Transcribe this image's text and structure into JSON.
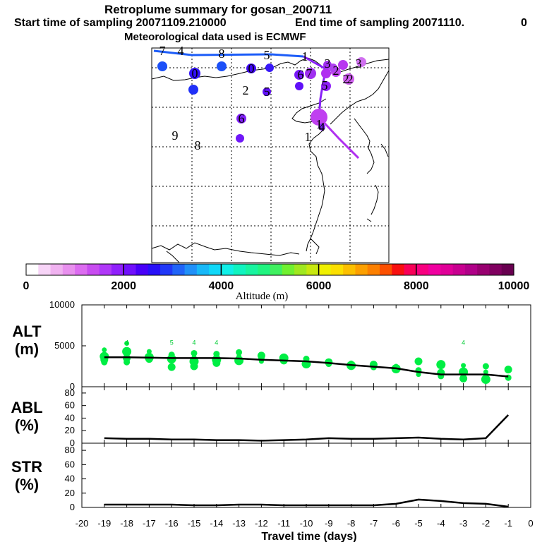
{
  "header": {
    "title": "Retroplume summary for gosan_200711",
    "start": "Start time of sampling 20071109.210000",
    "end": "End time of sampling 20071110.",
    "end_suffix": "0",
    "met": "Meteorological data used is ECMWF"
  },
  "colorbar": {
    "ticks": [
      "0",
      "2000",
      "4000",
      "6000",
      "8000",
      "10000"
    ],
    "label": "Altitude (m)",
    "colors": [
      "#ffffff",
      "#f7d4f7",
      "#f0b2f0",
      "#e890ee",
      "#dc6cf0",
      "#c84cf0",
      "#b038f8",
      "#9020fc",
      "#7010fc",
      "#4800f8",
      "#2810f8",
      "#2038f8",
      "#2064f8",
      "#2090f8",
      "#18b8f8",
      "#10d8f8",
      "#10f0e8",
      "#10f4c0",
      "#18f4a0",
      "#20f480",
      "#40f060",
      "#70f030",
      "#a0e820",
      "#c8e810",
      "#f0f000",
      "#fce000",
      "#fcc000",
      "#fca000",
      "#fc8000",
      "#fc5000",
      "#f81010",
      "#f80058",
      "#f80080",
      "#f000a0",
      "#e00098",
      "#c80090",
      "#b00088",
      "#980070",
      "#800060",
      "#680050"
    ]
  },
  "map": {
    "numbers": [
      {
        "t": "7",
        "c": "#000"
      },
      {
        "t": "4",
        "c": "#000"
      },
      {
        "t": "8",
        "c": "#000"
      },
      {
        "t": "5",
        "c": "#000"
      },
      {
        "t": "1",
        "c": "#000"
      },
      {
        "t": "3",
        "c": "#000"
      },
      {
        "t": "3",
        "c": "#000"
      },
      {
        "t": "2",
        "c": "#000"
      },
      {
        "t": "2",
        "c": "#000"
      },
      {
        "t": "9",
        "c": "#000"
      },
      {
        "t": "8",
        "c": "#000"
      },
      {
        "t": "1",
        "c": "#000"
      },
      {
        "t": "6",
        "c": "#000"
      },
      {
        "t": "0",
        "c": "#000"
      },
      {
        "t": "0",
        "c": "#000"
      },
      {
        "t": "2",
        "c": "#000"
      },
      {
        "t": "5",
        "c": "#000"
      },
      {
        "t": "6",
        "c": "#000"
      },
      {
        "t": "7",
        "c": "#000"
      },
      {
        "t": "1",
        "c": "#000"
      },
      {
        "t": "4",
        "c": "#000"
      },
      {
        "t": "5",
        "c": "#000"
      },
      {
        "t": "2",
        "c": "#000"
      }
    ]
  },
  "panels": {
    "alt": {
      "label1": "ALT",
      "label2": "(m)",
      "yticks": [
        "10000",
        "5000",
        "0"
      ]
    },
    "abl": {
      "label1": "ABL",
      "label2": "(%)",
      "yticks": [
        "80",
        "60",
        "40",
        "20",
        "0"
      ]
    },
    "str": {
      "label1": "STR",
      "label2": "(%)",
      "yticks": [
        "80",
        "60",
        "40",
        "20",
        "0"
      ]
    }
  },
  "xaxis": {
    "ticks": [
      "-20",
      "-19",
      "-18",
      "-17",
      "-16",
      "-15",
      "-14",
      "-13",
      "-12",
      "-11",
      "-10",
      "-9",
      "-8",
      "-7",
      "-6",
      "-5",
      "-4",
      "-3",
      "-2",
      "-1",
      "0"
    ],
    "label": "Travel time (days)"
  },
  "chart_data": [
    {
      "type": "line",
      "title": "ALT",
      "xlabel": "Travel time (days)",
      "ylabel": "(m)",
      "x": [
        -19,
        -18,
        -17,
        -16,
        -15,
        -14,
        -13,
        -12,
        -11,
        -10,
        -9,
        -8,
        -7,
        -6,
        -5,
        -4,
        -3,
        -2,
        -1
      ],
      "ylim": [
        0,
        10000
      ],
      "xlim": [
        -20,
        0
      ],
      "series": [
        {
          "name": "mean altitude",
          "values": [
            3600,
            3600,
            3550,
            3500,
            3500,
            3500,
            3450,
            3300,
            3200,
            3100,
            2900,
            2650,
            2450,
            2250,
            1800,
            1500,
            1500,
            1500,
            1250
          ]
        }
      ],
      "scatter": {
        "color": "#00ee44",
        "x": [
          -19,
          -19,
          -19,
          -19,
          -18,
          -18,
          -18,
          -18,
          -17,
          -17,
          -17,
          -16,
          -16,
          -16,
          -16,
          -15,
          -15,
          -15,
          -15,
          -14,
          -14,
          -14,
          -14,
          -13,
          -13,
          -13,
          -12,
          -12,
          -12,
          -11,
          -11,
          -10,
          -10,
          -10,
          -9,
          -9,
          -8,
          -8,
          -7,
          -7,
          -6,
          -6,
          -5,
          -5,
          -5,
          -4,
          -4,
          -4,
          -3,
          -3,
          -3,
          -2,
          -2,
          -2,
          -1,
          -1
        ],
        "y": [
          4500,
          3700,
          3300,
          3000,
          5300,
          4300,
          3500,
          3000,
          4300,
          3600,
          3400,
          3900,
          3700,
          3400,
          2400,
          4100,
          3600,
          3100,
          2500,
          4000,
          3700,
          3300,
          2900,
          4200,
          3700,
          3200,
          3800,
          3400,
          3100,
          3500,
          3200,
          3400,
          3100,
          2800,
          3000,
          2800,
          2900,
          2600,
          2700,
          2400,
          2500,
          2200,
          3100,
          2000,
          1500,
          2700,
          1700,
          1300,
          2600,
          1800,
          1000,
          2500,
          1800,
          900,
          2100,
          1100
        ]
      },
      "marker_labels_above_axis": [
        "4",
        "5",
        "4",
        "4",
        "4"
      ]
    },
    {
      "type": "line",
      "title": "ABL",
      "ylabel": "(%)",
      "x": [
        -19,
        -18,
        -17,
        -16,
        -15,
        -14,
        -13,
        -12,
        -11,
        -10,
        -9,
        -8,
        -7,
        -6,
        -5,
        -4,
        -3,
        -2,
        -1
      ],
      "ylim": [
        0,
        90
      ],
      "series": [
        {
          "name": "ABL fraction",
          "values": [
            8,
            7,
            7,
            6,
            6,
            5,
            5,
            4,
            5,
            6,
            8,
            7,
            7,
            8,
            9,
            7,
            6,
            8,
            45
          ]
        }
      ]
    },
    {
      "type": "line",
      "title": "STR",
      "ylabel": "(%)",
      "x": [
        -19,
        -18,
        -17,
        -16,
        -15,
        -14,
        -13,
        -12,
        -11,
        -10,
        -9,
        -8,
        -7,
        -6,
        -5,
        -4,
        -3,
        -2,
        -1
      ],
      "ylim": [
        0,
        90
      ],
      "series": [
        {
          "name": "STR fraction",
          "values": [
            4,
            4,
            4,
            4,
            3,
            3,
            4,
            4,
            3,
            3,
            3,
            3,
            3,
            5,
            11,
            9,
            6,
            5,
            1
          ]
        }
      ]
    }
  ]
}
